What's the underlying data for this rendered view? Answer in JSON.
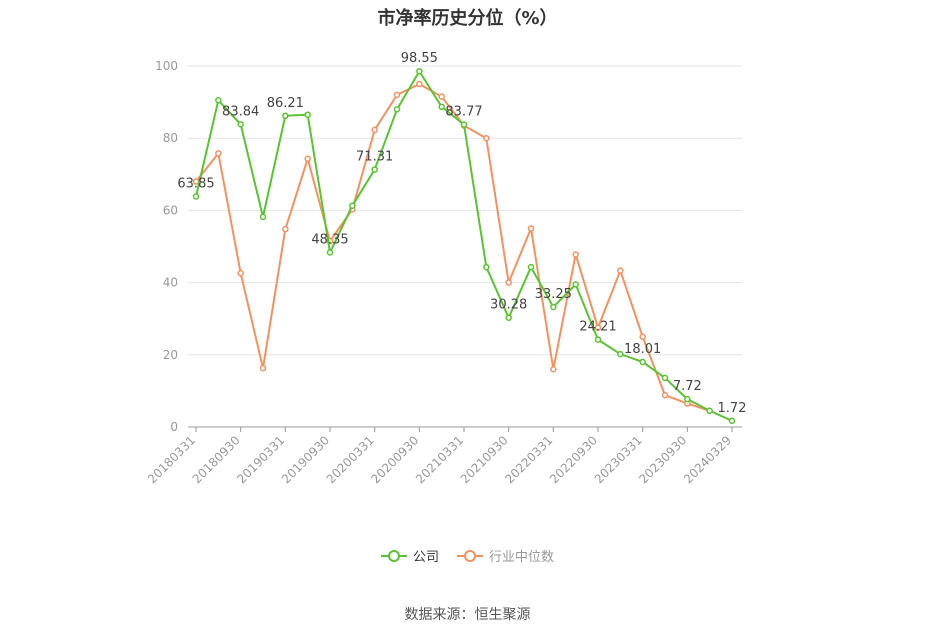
{
  "title": "市净率历史分位（%）",
  "source": "数据来源：恒生聚源",
  "colors": {
    "company": "#5bc234",
    "industry": "#f29262",
    "grid": "#e5e5e5",
    "axis": "#999999"
  },
  "chart_data": {
    "type": "line",
    "title": "市净率历史分位（%）",
    "ylim": [
      0,
      100
    ],
    "yticks": [
      0,
      20,
      40,
      60,
      80,
      100
    ],
    "grid": true,
    "legend_position": "bottom",
    "x": [
      "20180331",
      "20180630",
      "20180930",
      "20181231",
      "20190331",
      "20190630",
      "20190930",
      "20191231",
      "20200331",
      "20200630",
      "20200930",
      "20201231",
      "20210331",
      "20210630",
      "20210930",
      "20211231",
      "20220331",
      "20220630",
      "20220930",
      "20221231",
      "20230331",
      "20230630",
      "20230930",
      "20231231",
      "20240329"
    ],
    "xtick_labels": [
      "20180331",
      "20180930",
      "20190331",
      "20190930",
      "20200331",
      "20200930",
      "20210331",
      "20210930",
      "20220331",
      "20220930",
      "20230331",
      "20230930",
      "20240329"
    ],
    "series": [
      {
        "name": "公司",
        "color": "#5bc234",
        "values": [
          63.85,
          90.5,
          83.84,
          58.2,
          86.21,
          86.5,
          48.35,
          61.3,
          71.31,
          88.0,
          98.55,
          88.7,
          83.77,
          44.3,
          30.28,
          44.3,
          33.25,
          39.5,
          24.21,
          20.2,
          18.01,
          13.6,
          7.72,
          4.5,
          1.72
        ],
        "labels": [
          "63.85",
          null,
          "83.84",
          null,
          "86.21",
          null,
          "48.35",
          null,
          "71.31",
          null,
          "98.55",
          null,
          "83.77",
          null,
          "30.28",
          null,
          "33.25",
          null,
          "24.21",
          null,
          "18.01",
          null,
          "7.72",
          null,
          "1.72"
        ]
      },
      {
        "name": "行业中位数",
        "color": "#f29262",
        "values": [
          68.0,
          75.8,
          42.6,
          16.3,
          54.8,
          74.3,
          51.5,
          60.3,
          82.3,
          92.0,
          95.0,
          91.5,
          83.5,
          80.0,
          40.0,
          55.0,
          16.0,
          47.8,
          27.5,
          43.3,
          25.0,
          8.8,
          6.5,
          4.5,
          null
        ]
      }
    ]
  }
}
